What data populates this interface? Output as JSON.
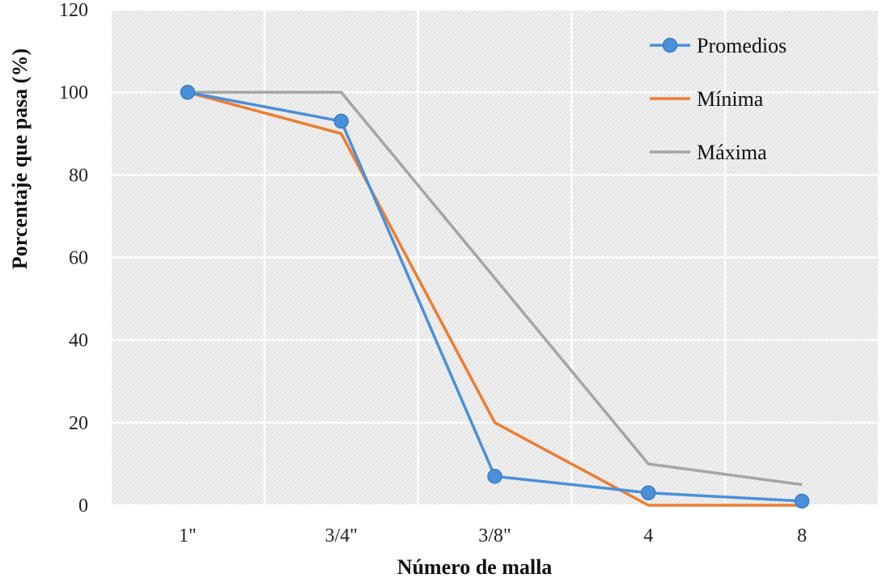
{
  "chart_data": {
    "type": "line",
    "categories": [
      "1\"",
      "3/4\"",
      "3/8\"",
      "4",
      "8"
    ],
    "series": [
      {
        "name": "Promedios",
        "values": [
          100,
          93,
          7,
          3,
          1
        ],
        "color": "#4a90d9",
        "markers": true
      },
      {
        "name": "Mínima",
        "values": [
          100,
          90,
          20,
          0,
          0
        ],
        "color": "#ed7d31",
        "markers": false
      },
      {
        "name": "Máxima",
        "values": [
          100,
          100,
          55,
          10,
          5
        ],
        "color": "#a5a5a5",
        "markers": false
      }
    ],
    "title": "",
    "xlabel": "Número de malla",
    "ylabel": "Porcentaje que pasa (%)",
    "ylim": [
      0,
      120
    ],
    "yticks": [
      0,
      20,
      40,
      60,
      80,
      100,
      120
    ],
    "grid": true,
    "legend_position": "top-right",
    "plot_background": "hatched-gray"
  }
}
